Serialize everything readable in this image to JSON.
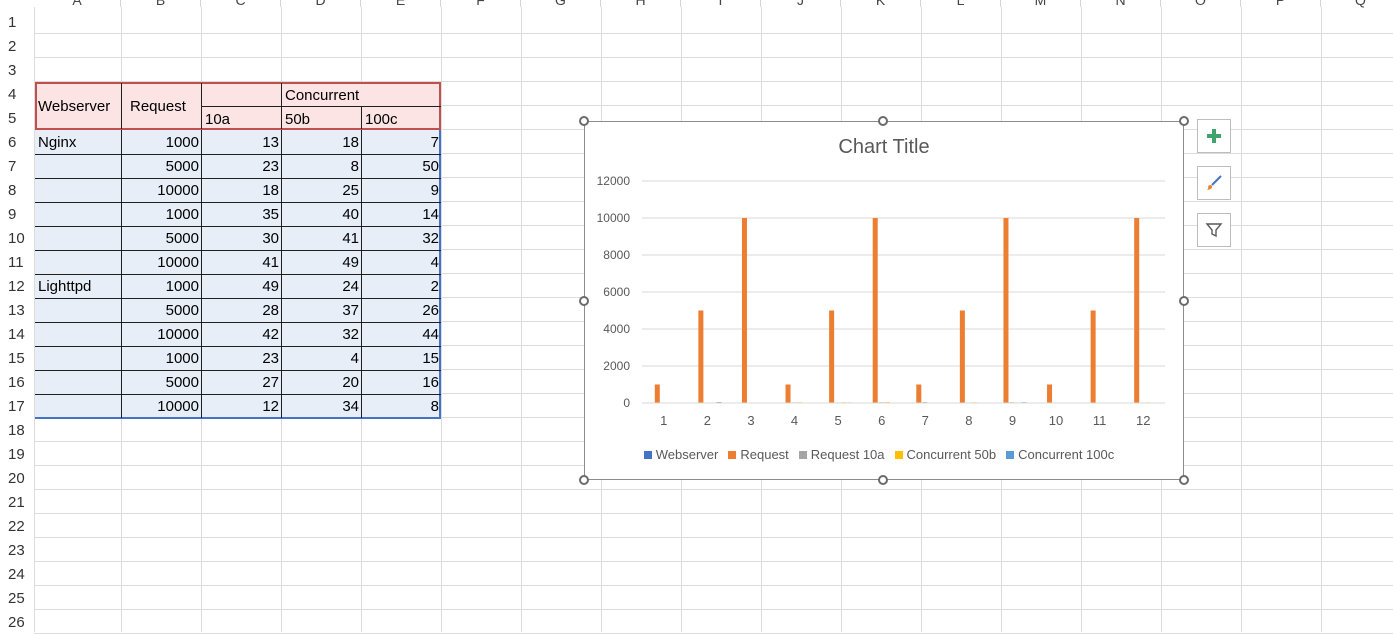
{
  "columns": [
    "A",
    "B",
    "C",
    "D",
    "E",
    "F",
    "G",
    "H",
    "I",
    "J",
    "K",
    "L",
    "M",
    "N",
    "O",
    "P",
    "Q"
  ],
  "rows": [
    "1",
    "2",
    "3",
    "4",
    "5",
    "6",
    "7",
    "8",
    "9",
    "10",
    "11",
    "12",
    "13",
    "14",
    "15",
    "16",
    "17",
    "18",
    "19",
    "20",
    "21",
    "22",
    "23",
    "24",
    "25",
    "26"
  ],
  "table": {
    "header": {
      "webserver": "Webserver",
      "request": "Request",
      "concurrent": "Concurrent",
      "sub": [
        "10a",
        "50b",
        "100c"
      ]
    },
    "rows": [
      {
        "server": "Nginx",
        "request": "1000",
        "c10a": "13",
        "c50b": "18",
        "c100c": "7"
      },
      {
        "server": "",
        "request": "5000",
        "c10a": "23",
        "c50b": "8",
        "c100c": "50"
      },
      {
        "server": "",
        "request": "10000",
        "c10a": "18",
        "c50b": "25",
        "c100c": "9"
      },
      {
        "server": "",
        "request": "1000",
        "c10a": "35",
        "c50b": "40",
        "c100c": "14"
      },
      {
        "server": "",
        "request": "5000",
        "c10a": "30",
        "c50b": "41",
        "c100c": "32"
      },
      {
        "server": "",
        "request": "10000",
        "c10a": "41",
        "c50b": "49",
        "c100c": "4"
      },
      {
        "server": "Lighttpd",
        "request": "1000",
        "c10a": "49",
        "c50b": "24",
        "c100c": "2"
      },
      {
        "server": "",
        "request": "5000",
        "c10a": "28",
        "c50b": "37",
        "c100c": "26"
      },
      {
        "server": "",
        "request": "10000",
        "c10a": "42",
        "c50b": "32",
        "c100c": "44"
      },
      {
        "server": "",
        "request": "1000",
        "c10a": "23",
        "c50b": "4",
        "c100c": "15"
      },
      {
        "server": "",
        "request": "5000",
        "c10a": "27",
        "c50b": "20",
        "c100c": "16"
      },
      {
        "server": "",
        "request": "10000",
        "c10a": "12",
        "c50b": "34",
        "c100c": "8"
      }
    ]
  },
  "chart_data": {
    "type": "bar",
    "title": "Chart Title",
    "categories": [
      "1",
      "2",
      "3",
      "4",
      "5",
      "6",
      "7",
      "8",
      "9",
      "10",
      "11",
      "12"
    ],
    "series": [
      {
        "name": "Webserver",
        "values": [
          0,
          0,
          0,
          0,
          0,
          0,
          0,
          0,
          0,
          0,
          0,
          0
        ],
        "color": "#4472C4"
      },
      {
        "name": "Request",
        "values": [
          1000,
          5000,
          10000,
          1000,
          5000,
          10000,
          1000,
          5000,
          10000,
          1000,
          5000,
          10000
        ],
        "color": "#ED7D31"
      },
      {
        "name": "Request 10a",
        "values": [
          13,
          23,
          18,
          35,
          30,
          41,
          49,
          28,
          42,
          23,
          27,
          12
        ],
        "color": "#A5A5A5"
      },
      {
        "name": "Concurrent 50b",
        "values": [
          18,
          8,
          25,
          40,
          41,
          49,
          24,
          37,
          32,
          4,
          20,
          34
        ],
        "color": "#FFC000"
      },
      {
        "name": "Concurrent 100c",
        "values": [
          7,
          50,
          9,
          14,
          32,
          4,
          2,
          26,
          44,
          15,
          16,
          8
        ],
        "color": "#5B9BD5"
      }
    ],
    "yticks": [
      "0",
      "2000",
      "4000",
      "6000",
      "8000",
      "10000",
      "12000"
    ],
    "ylim": [
      0,
      12000
    ],
    "grid": true,
    "legend": "bottom"
  },
  "tools": {
    "add": "plus-icon",
    "style": "brush-icon",
    "filter": "filter-icon"
  },
  "colors": {
    "header_fill": "#FCE4E4",
    "header_border": "#C0504D",
    "body_fill": "#E7EEF8",
    "body_border": "#4472C4"
  }
}
